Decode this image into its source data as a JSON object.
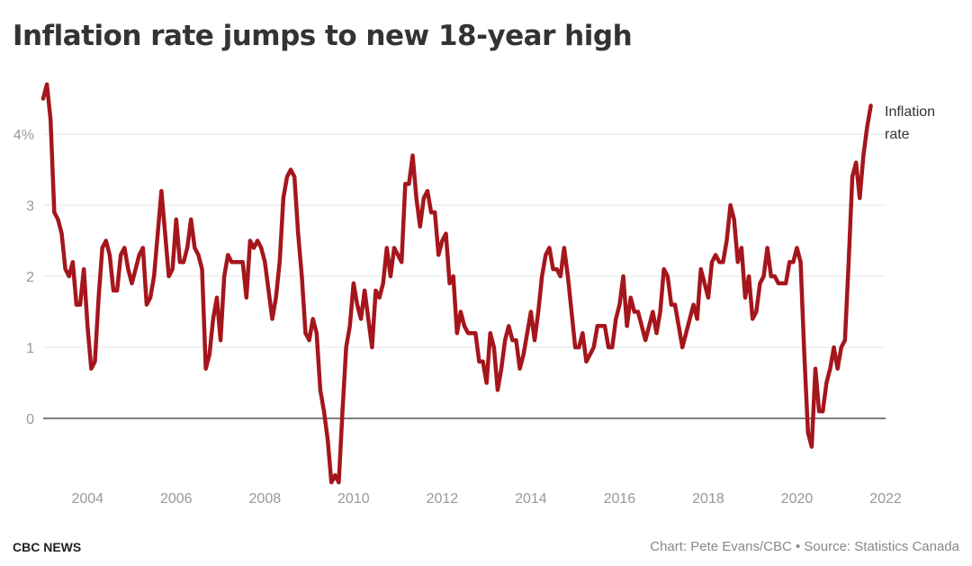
{
  "title": "Inflation rate jumps to new 18-year high",
  "footer": {
    "brand": "CBC NEWS",
    "credit": "Chart: Pete Evans/CBC",
    "separator": " • ",
    "source": "Source: Statistics Canada"
  },
  "chart_data": {
    "type": "line",
    "title": "Inflation rate jumps to new 18-year high",
    "xlabel": "",
    "ylabel": "",
    "xlim": [
      2003.0,
      2022.0
    ],
    "ylim": [
      -0.95,
      4.9
    ],
    "x_ticks": [
      2004,
      2006,
      2008,
      2010,
      2012,
      2014,
      2016,
      2018,
      2020,
      2022
    ],
    "x_tick_labels": [
      "2004",
      "2006",
      "2008",
      "2010",
      "2012",
      "2014",
      "2016",
      "2018",
      "2020",
      "2022"
    ],
    "y_ticks": [
      0,
      1,
      2,
      3,
      4
    ],
    "y_tick_labels": [
      "0",
      "1",
      "2",
      "3",
      "4%"
    ],
    "grid": true,
    "legend_position": "right-end",
    "colors": {
      "line": "#a5161c",
      "grid": "#e6e6e6",
      "zero": "#444444",
      "tick": "#999999"
    },
    "series": [
      {
        "name": "Inflation rate",
        "x_start": "2003-01",
        "frequency": "monthly",
        "values": [
          4.5,
          4.7,
          4.2,
          2.9,
          2.8,
          2.6,
          2.1,
          2.0,
          2.2,
          1.6,
          1.6,
          2.1,
          1.3,
          0.7,
          0.8,
          1.7,
          2.4,
          2.5,
          2.3,
          1.8,
          1.8,
          2.3,
          2.4,
          2.1,
          1.9,
          2.1,
          2.3,
          2.4,
          1.6,
          1.7,
          2.0,
          2.6,
          3.2,
          2.6,
          2.0,
          2.1,
          2.8,
          2.2,
          2.2,
          2.4,
          2.8,
          2.4,
          2.3,
          2.1,
          0.7,
          0.9,
          1.4,
          1.7,
          1.1,
          2.0,
          2.3,
          2.2,
          2.2,
          2.2,
          2.2,
          1.7,
          2.5,
          2.4,
          2.5,
          2.4,
          2.2,
          1.8,
          1.4,
          1.7,
          2.2,
          3.1,
          3.4,
          3.5,
          3.4,
          2.6,
          2.0,
          1.2,
          1.1,
          1.4,
          1.2,
          0.4,
          0.1,
          -0.3,
          -0.9,
          -0.8,
          -0.9,
          0.1,
          1.0,
          1.3,
          1.9,
          1.6,
          1.4,
          1.8,
          1.4,
          1.0,
          1.8,
          1.7,
          1.9,
          2.4,
          2.0,
          2.4,
          2.3,
          2.2,
          3.3,
          3.3,
          3.7,
          3.1,
          2.7,
          3.1,
          3.2,
          2.9,
          2.9,
          2.3,
          2.5,
          2.6,
          1.9,
          2.0,
          1.2,
          1.5,
          1.3,
          1.2,
          1.2,
          1.2,
          0.8,
          0.8,
          0.5,
          1.2,
          1.0,
          0.4,
          0.7,
          1.1,
          1.3,
          1.1,
          1.1,
          0.7,
          0.9,
          1.2,
          1.5,
          1.1,
          1.5,
          2.0,
          2.3,
          2.4,
          2.1,
          2.1,
          2.0,
          2.4,
          2.0,
          1.5,
          1.0,
          1.0,
          1.2,
          0.8,
          0.9,
          1.0,
          1.3,
          1.3,
          1.3,
          1.0,
          1.0,
          1.4,
          1.6,
          2.0,
          1.3,
          1.7,
          1.5,
          1.5,
          1.3,
          1.1,
          1.3,
          1.5,
          1.2,
          1.5,
          2.1,
          2.0,
          1.6,
          1.6,
          1.3,
          1.0,
          1.2,
          1.4,
          1.6,
          1.4,
          2.1,
          1.9,
          1.7,
          2.2,
          2.3,
          2.2,
          2.2,
          2.5,
          3.0,
          2.8,
          2.2,
          2.4,
          1.7,
          2.0,
          1.4,
          1.5,
          1.9,
          2.0,
          2.4,
          2.0,
          2.0,
          1.9,
          1.9,
          1.9,
          2.2,
          2.2,
          2.4,
          2.2,
          0.9,
          -0.2,
          -0.4,
          0.7,
          0.1,
          0.1,
          0.5,
          0.7,
          1.0,
          0.7,
          1.0,
          1.1,
          2.2,
          3.4,
          3.6,
          3.1,
          3.7,
          4.1,
          4.4
        ]
      }
    ],
    "legend": [
      "Inflation",
      "rate"
    ]
  }
}
